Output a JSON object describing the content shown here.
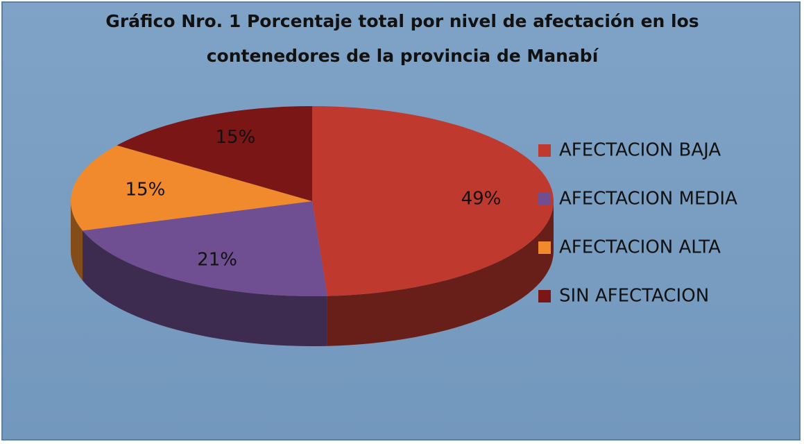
{
  "chart_data": {
    "type": "pie",
    "title": [
      "Gráfico Nro. 1    Porcentaje total por nivel de afectación en los",
      "contenedores de la provincia de Manabí"
    ],
    "categories": [
      "AFECTACION BAJA",
      "AFECTACION MEDIA",
      "AFECTACION ALTA",
      "SIN AFECTACION"
    ],
    "values": [
      49,
      21,
      15,
      15
    ],
    "value_labels": [
      "49%",
      "21%",
      "15%",
      "15%"
    ],
    "colors": [
      "#c0392f",
      "#6f4f92",
      "#f08a2c",
      "#7a1616"
    ],
    "legend": "right"
  }
}
